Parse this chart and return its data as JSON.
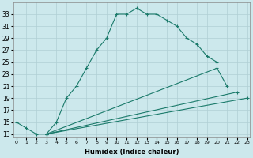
{
  "xlabel": "Humidex (Indice chaleur)",
  "bg_color": "#cce8ec",
  "grid_color": "#b0cfd4",
  "line_color": "#1a7a6a",
  "x_values": [
    0,
    1,
    2,
    3,
    4,
    5,
    6,
    7,
    8,
    9,
    10,
    11,
    12,
    13,
    14,
    15,
    16,
    17,
    18,
    19,
    20,
    21,
    22,
    23
  ],
  "line_top": [
    15,
    14,
    13,
    13,
    15,
    19,
    21,
    24,
    27,
    29,
    33,
    33,
    34,
    33,
    33,
    32,
    31,
    29,
    28,
    26,
    25,
    null,
    null,
    null
  ],
  "line_mid": [
    null,
    null,
    null,
    13,
    null,
    null,
    null,
    null,
    null,
    null,
    null,
    null,
    null,
    null,
    null,
    null,
    null,
    null,
    null,
    null,
    24,
    21,
    null,
    null
  ],
  "line_low1": [
    null,
    null,
    null,
    13,
    null,
    null,
    null,
    null,
    null,
    null,
    null,
    null,
    null,
    null,
    null,
    null,
    null,
    null,
    null,
    null,
    null,
    null,
    20,
    19
  ],
  "line_low2": [
    null,
    null,
    null,
    13,
    null,
    null,
    null,
    null,
    null,
    null,
    null,
    null,
    null,
    null,
    null,
    null,
    null,
    null,
    null,
    null,
    null,
    null,
    null,
    19
  ],
  "ylim": [
    12.5,
    35
  ],
  "xlim": [
    -0.3,
    23.3
  ],
  "yticks": [
    13,
    15,
    17,
    19,
    21,
    23,
    25,
    27,
    29,
    31,
    33
  ],
  "xtick_labels": [
    "0",
    "1",
    "2",
    "3",
    "4",
    "5",
    "6",
    "7",
    "8",
    "9",
    "10",
    "11",
    "12",
    "13",
    "14",
    "15",
    "16",
    "17",
    "18",
    "19",
    "20",
    "21",
    "22",
    "23"
  ]
}
